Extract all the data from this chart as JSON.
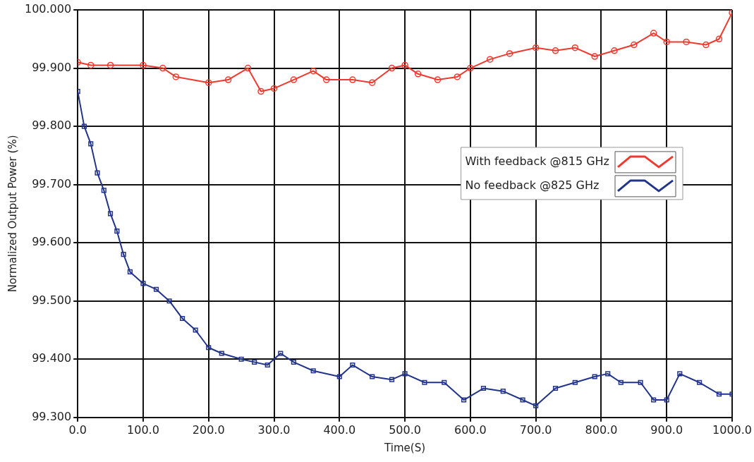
{
  "chart_data": {
    "type": "line",
    "xlabel": "Time(S)",
    "ylabel": "Normalized Output Power (%)",
    "xlim": [
      0,
      1000
    ],
    "ylim": [
      99.3,
      100
    ],
    "xticks": [
      {
        "value": 0,
        "label": "0.0"
      },
      {
        "value": 100,
        "label": "100.0"
      },
      {
        "value": 200,
        "label": "200.0"
      },
      {
        "value": 300,
        "label": "300.0"
      },
      {
        "value": 400,
        "label": "400.0"
      },
      {
        "value": 500,
        "label": "500.0"
      },
      {
        "value": 600,
        "label": "600.0"
      },
      {
        "value": 700,
        "label": "700.0"
      },
      {
        "value": 800,
        "label": "800.0"
      },
      {
        "value": 900,
        "label": "900.0"
      },
      {
        "value": 1000,
        "label": "1000.0"
      }
    ],
    "yticks": [
      {
        "value": 99.3,
        "label": "99.300"
      },
      {
        "value": 99.4,
        "label": "99.400"
      },
      {
        "value": 99.5,
        "label": "99.500"
      },
      {
        "value": 99.6,
        "label": "99.600"
      },
      {
        "value": 99.7,
        "label": "99.700"
      },
      {
        "value": 99.8,
        "label": "99.800"
      },
      {
        "value": 99.9,
        "label": "99.900"
      },
      {
        "value": 100,
        "label": "100.000"
      }
    ],
    "grid": true,
    "legend": "right",
    "series": [
      {
        "name": "With feedback @815 GHz",
        "color": "#f0392e",
        "marker": "circle",
        "x": [
          0,
          20,
          50,
          100,
          130,
          150,
          200,
          230,
          260,
          280,
          300,
          330,
          360,
          380,
          420,
          450,
          480,
          500,
          520,
          550,
          580,
          600,
          630,
          660,
          700,
          730,
          760,
          790,
          820,
          850,
          880,
          900,
          930,
          960,
          980,
          1000
        ],
        "values": [
          99.91,
          99.905,
          99.905,
          99.905,
          99.9,
          99.885,
          99.875,
          99.88,
          99.9,
          99.86,
          99.865,
          99.88,
          99.895,
          99.88,
          99.88,
          99.875,
          99.9,
          99.905,
          99.89,
          99.88,
          99.885,
          99.9,
          99.915,
          99.925,
          99.935,
          99.93,
          99.935,
          99.92,
          99.93,
          99.94,
          99.96,
          99.945,
          99.945,
          99.94,
          99.95,
          99.995
        ]
      },
      {
        "name": "No feedback @825 GHz",
        "color": "#22338a",
        "marker": "square",
        "x": [
          0,
          10,
          20,
          30,
          40,
          50,
          60,
          70,
          80,
          100,
          120,
          140,
          160,
          180,
          200,
          220,
          250,
          270,
          290,
          310,
          330,
          360,
          400,
          420,
          450,
          480,
          500,
          530,
          560,
          590,
          620,
          650,
          680,
          700,
          730,
          760,
          790,
          810,
          830,
          860,
          880,
          900,
          920,
          950,
          980,
          1000
        ],
        "values": [
          99.86,
          99.8,
          99.77,
          99.72,
          99.69,
          99.65,
          99.62,
          99.58,
          99.55,
          99.53,
          99.52,
          99.5,
          99.47,
          99.45,
          99.42,
          99.41,
          99.4,
          99.395,
          99.39,
          99.41,
          99.395,
          99.38,
          99.37,
          99.39,
          99.37,
          99.365,
          99.375,
          99.36,
          99.36,
          99.33,
          99.35,
          99.345,
          99.33,
          99.32,
          99.35,
          99.36,
          99.37,
          99.375,
          99.36,
          99.36,
          99.33,
          99.33,
          99.375,
          99.36,
          99.34,
          99.34
        ]
      }
    ]
  }
}
